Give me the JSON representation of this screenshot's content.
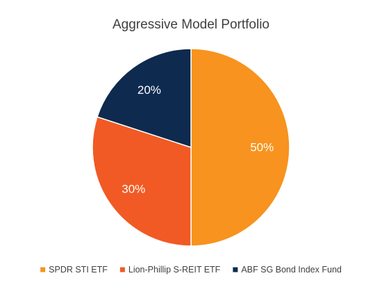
{
  "chart_data": {
    "type": "pie",
    "title": "Aggressive Model Portfolio",
    "legend_position": "bottom",
    "start_angle_deg": 0,
    "direction": "clockwise",
    "slices": [
      {
        "name": "SPDR STI ETF",
        "value": 50,
        "label": "50%",
        "color": "#F7931E"
      },
      {
        "name": "Lion-Phillip S-REIT ETF",
        "value": 30,
        "label": "30%",
        "color": "#F15A24"
      },
      {
        "name": "ABF SG Bond Index Fund",
        "value": 20,
        "label": "20%",
        "color": "#0E2A4F"
      }
    ]
  }
}
